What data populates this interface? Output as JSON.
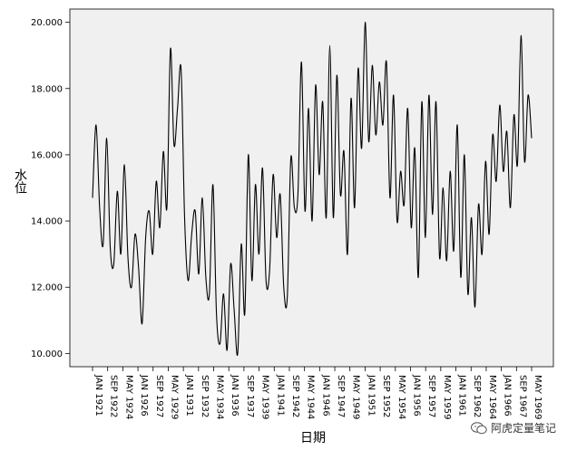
{
  "chart_data": {
    "type": "line",
    "title": "",
    "xlabel": "日期",
    "ylabel": "水位",
    "ylim": [
      9.6,
      20.4
    ],
    "yticks": [
      "10.000",
      "12.000",
      "14.000",
      "16.000",
      "18.000",
      "20.000"
    ],
    "xticks": [
      "JAN 1921",
      "SEP 1922",
      "MAY 1924",
      "JAN 1926",
      "SEP 1927",
      "MAY 1929",
      "JAN 1931",
      "SEP 1932",
      "MAY 1934",
      "JAN 1936",
      "SEP 1937",
      "MAY 1939",
      "JAN 1941",
      "SEP 1942",
      "MAY 1944",
      "JAN 1946",
      "SEP 1947",
      "MAY 1949",
      "JAN 1951",
      "SEP 1952",
      "MAY 1954",
      "JAN 1956",
      "SEP 1957",
      "MAY 1959",
      "JAN 1961",
      "SEP 1962",
      "MAY 1964",
      "JAN 1966",
      "SEP 1967",
      "MAY 1969"
    ],
    "x_start": "JAN 1921",
    "x_interval": "monthly",
    "grid": false,
    "line_color": "#000000",
    "background": "#f0f0f0",
    "series": [
      {
        "name": "",
        "values": [
          14.7,
          16.9,
          14.4,
          13.3,
          16.5,
          13.2,
          12.7,
          14.9,
          13.0,
          15.7,
          12.9,
          12.0,
          13.6,
          12.6,
          10.9,
          13.5,
          14.3,
          13.0,
          15.2,
          13.8,
          16.1,
          14.4,
          19.2,
          16.3,
          17.4,
          18.6,
          14.1,
          12.2,
          13.6,
          14.3,
          12.4,
          14.7,
          12.3,
          11.8,
          15.1,
          11.2,
          10.3,
          11.8,
          10.1,
          12.7,
          11.3,
          10.0,
          13.3,
          11.2,
          16.0,
          12.2,
          15.1,
          13.0,
          15.6,
          12.2,
          12.5,
          15.4,
          13.5,
          14.8,
          12.0,
          11.7,
          15.9,
          14.4,
          14.8,
          18.8,
          14.3,
          17.4,
          14.0,
          18.1,
          15.4,
          17.6,
          14.1,
          19.3,
          14.1,
          18.4,
          14.8,
          16.1,
          13.0,
          17.7,
          14.4,
          18.6,
          16.2,
          20.0,
          16.4,
          18.7,
          16.6,
          18.2,
          16.9,
          18.8,
          14.7,
          17.8,
          14.0,
          15.5,
          14.5,
          17.4,
          13.8,
          16.2,
          12.3,
          17.6,
          13.5,
          17.8,
          14.2,
          17.6,
          12.9,
          15.0,
          12.8,
          15.5,
          13.1,
          16.9,
          12.3,
          16.0,
          11.8,
          14.1,
          11.4,
          14.5,
          13.0,
          15.8,
          13.6,
          16.6,
          15.2,
          17.5,
          15.5,
          16.7,
          14.4,
          17.2,
          15.7,
          19.6,
          15.8,
          17.8,
          16.5
        ]
      }
    ]
  },
  "watermark": {
    "text": "阿虎定量笔记",
    "icon": "wechat-icon"
  }
}
